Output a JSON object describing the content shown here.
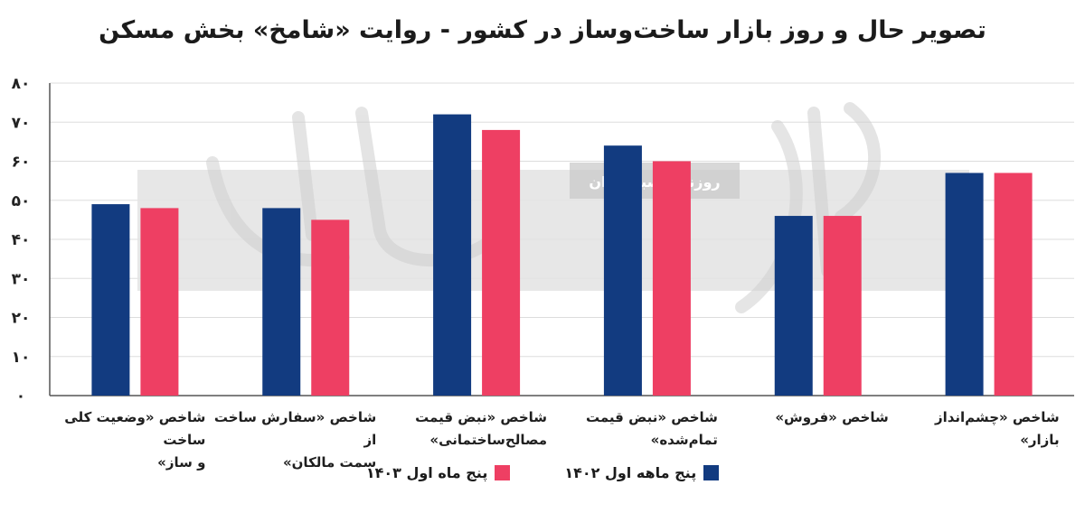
{
  "title": "تصویر حال و روز بازار ساخت‌وساز در کشور - روایت «شامخ» بخش مسکن",
  "watermark": {
    "logo_text": "دنیای اقتصاد",
    "stamp_text": "روزنامه صبح ایران"
  },
  "colors": {
    "series_1402": "#123b80",
    "series_1403": "#ee3f63",
    "grid": "#dddddd"
  },
  "legend": {
    "placement": "bottom-center",
    "items": [
      {
        "label": "پنج ماهه اول ۱۴۰۲",
        "color": "#123b80"
      },
      {
        "label": "پنج ماه اول ۱۴۰۳",
        "color": "#ee3f63"
      }
    ]
  },
  "chart_data": {
    "type": "bar",
    "title": "تصویر حال و روز بازار ساخت‌وساز در کشور - روایت «شامخ» بخش مسکن",
    "xlabel": "",
    "ylabel": "",
    "ylim": [
      0,
      80
    ],
    "yticks": [
      0,
      10,
      20,
      30,
      40,
      50,
      60,
      70,
      80
    ],
    "ytick_labels": [
      "۰",
      "۱۰",
      "۲۰",
      "۳۰",
      "۴۰",
      "۵۰",
      "۶۰",
      "۷۰",
      "۸۰"
    ],
    "grid": true,
    "categories": [
      [
        "شاخص «وضعیت کلی ساخت",
        "و ساز»"
      ],
      [
        "شاخص «سفارش ساخت از",
        "سمت مالکان»"
      ],
      [
        "شاخص «نبض قیمت",
        "مصالح‌ساختمانی»"
      ],
      [
        "شاخص «نبض قیمت",
        "تمام‌شده»"
      ],
      [
        "شاخص «فروش»"
      ],
      [
        "شاخص «چشم‌انداز بازار»"
      ]
    ],
    "series": [
      {
        "name": "پنج ماهه اول ۱۴۰۲",
        "color": "#123b80",
        "values": [
          49,
          48,
          72,
          64,
          46,
          57
        ]
      },
      {
        "name": "پنج ماه اول ۱۴۰۳",
        "color": "#ee3f63",
        "values": [
          48,
          45,
          68,
          60,
          46,
          57
        ]
      }
    ]
  }
}
